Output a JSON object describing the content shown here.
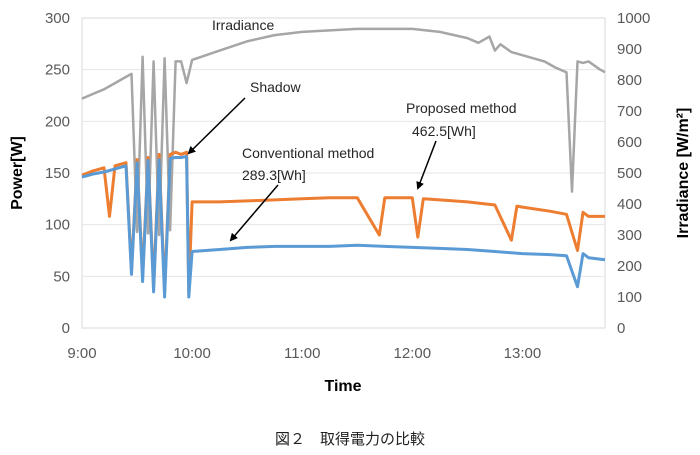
{
  "chart_data": {
    "type": "line",
    "xlabel": "Time",
    "ylabel": "Power[W]",
    "y2label": "Irradiance [W/m²]",
    "x_ticks": [
      "9:00",
      "10:00",
      "11:00",
      "12:00",
      "13:00"
    ],
    "x_tick_hours": [
      9,
      10,
      11,
      12,
      13
    ],
    "xlim": [
      9,
      13.75
    ],
    "ylim": [
      0,
      300
    ],
    "y_ticks": [
      "0",
      "50",
      "100",
      "150",
      "200",
      "250",
      "300"
    ],
    "y2lim": [
      0,
      1000
    ],
    "y2_ticks": [
      "0",
      "100",
      "200",
      "300",
      "400",
      "500",
      "600",
      "700",
      "800",
      "900",
      "1000"
    ],
    "grid": true,
    "series": [
      {
        "name": "Irradiance",
        "axis": "right",
        "color": "#a6a6a6",
        "x": [
          9.0,
          9.1,
          9.2,
          9.3,
          9.4,
          9.45,
          9.5,
          9.55,
          9.6,
          9.65,
          9.7,
          9.75,
          9.8,
          9.85,
          9.9,
          9.95,
          10.0,
          10.25,
          10.5,
          10.75,
          11.0,
          11.25,
          11.5,
          11.75,
          12.0,
          12.25,
          12.5,
          12.6,
          12.7,
          12.75,
          12.8,
          12.9,
          13.0,
          13.1,
          13.2,
          13.3,
          13.4,
          13.45,
          13.5,
          13.55,
          13.6,
          13.7,
          13.75
        ],
        "values": [
          740,
          755,
          770,
          790,
          810,
          820,
          310,
          875,
          305,
          860,
          300,
          870,
          315,
          860,
          860,
          790,
          865,
          895,
          925,
          945,
          955,
          960,
          965,
          965,
          965,
          955,
          935,
          920,
          940,
          895,
          915,
          890,
          880,
          870,
          860,
          840,
          825,
          440,
          860,
          855,
          860,
          835,
          825
        ]
      },
      {
        "name": "Proposed method",
        "axis": "left",
        "color": "#ed7d31",
        "x": [
          9.0,
          9.1,
          9.2,
          9.25,
          9.3,
          9.4,
          9.45,
          9.5,
          9.55,
          9.6,
          9.65,
          9.7,
          9.75,
          9.8,
          9.85,
          9.9,
          9.95,
          9.97,
          10.0,
          10.25,
          10.5,
          10.75,
          11.0,
          11.25,
          11.5,
          11.7,
          11.75,
          12.0,
          12.05,
          12.1,
          12.25,
          12.5,
          12.75,
          12.9,
          12.95,
          13.0,
          13.25,
          13.4,
          13.5,
          13.55,
          13.6,
          13.75
        ],
        "values": [
          148,
          152,
          155,
          108,
          157,
          160,
          55,
          163,
          50,
          165,
          40,
          168,
          35,
          168,
          170,
          168,
          170,
          35,
          122,
          122,
          123,
          124,
          125,
          126,
          126,
          90,
          126,
          126,
          88,
          125,
          124,
          122,
          119,
          85,
          118,
          117,
          113,
          110,
          75,
          112,
          108,
          108
        ]
      },
      {
        "name": "Conventional method",
        "axis": "left",
        "color": "#5b9bd5",
        "x": [
          9.0,
          9.1,
          9.2,
          9.3,
          9.4,
          9.45,
          9.5,
          9.55,
          9.6,
          9.65,
          9.7,
          9.75,
          9.8,
          9.85,
          9.9,
          9.95,
          9.97,
          10.0,
          10.25,
          10.5,
          10.75,
          11.0,
          11.25,
          11.5,
          11.75,
          12.0,
          12.25,
          12.5,
          12.75,
          13.0,
          13.25,
          13.4,
          13.5,
          13.55,
          13.6,
          13.75
        ],
        "values": [
          146,
          149,
          151,
          154,
          157,
          52,
          160,
          45,
          162,
          35,
          163,
          30,
          164,
          165,
          165,
          166,
          30,
          74,
          76,
          78,
          79,
          79,
          79,
          80,
          79,
          78,
          77,
          76,
          74,
          72,
          71,
          70,
          40,
          72,
          68,
          66
        ]
      }
    ],
    "annotations": {
      "irradiance": "Irradiance",
      "shadow": "Shadow",
      "proposed_title": "Proposed method",
      "proposed_value": "462.5[Wh]",
      "conventional_title": "Conventional method",
      "conventional_value": "289.3[Wh]"
    }
  },
  "caption": "図２　取得電力の比較"
}
